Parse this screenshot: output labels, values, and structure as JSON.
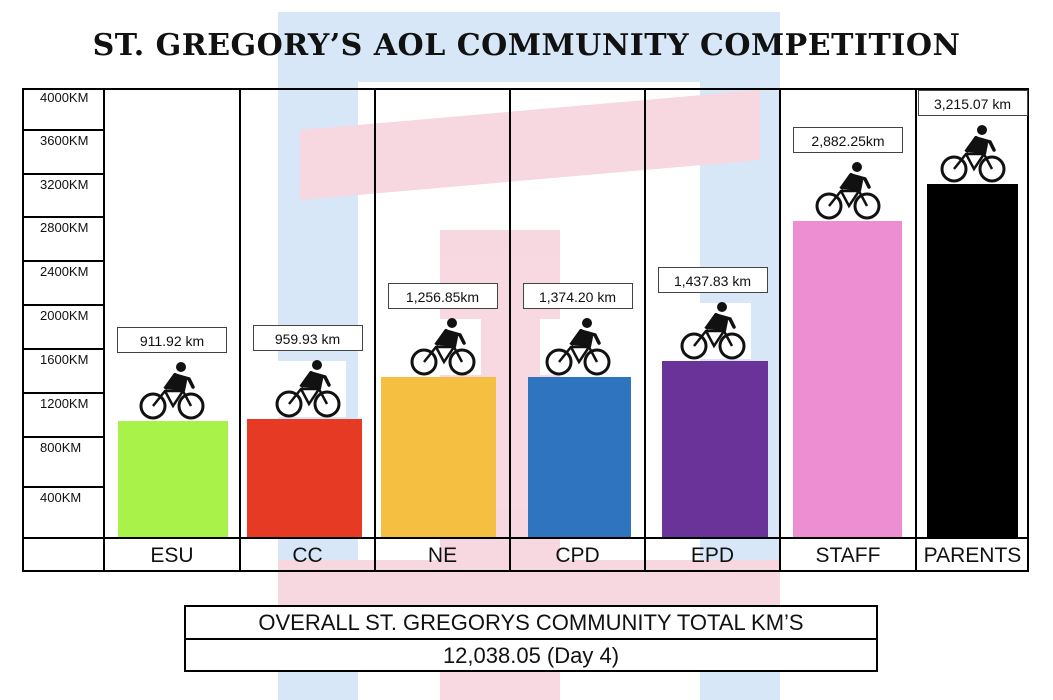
{
  "title": "ST. GREGORY’S AOL COMMUNITY COMPETITION",
  "chart_data": {
    "type": "bar",
    "title": "ST. GREGORY’S AOL COMMUNITY COMPETITION",
    "categories": [
      "ESU",
      "CC",
      "NE",
      "CPD",
      "EPD",
      "STAFF",
      "PARENTS"
    ],
    "values": [
      911.92,
      959.93,
      1256.85,
      1374.2,
      1437.83,
      2882.25,
      3215.07
    ],
    "value_labels": [
      "911.92 km",
      "959.93 km",
      "1,256.85km",
      "1,374.20 km",
      "1,437.83 km",
      "2,882.25km",
      "3,215.07 km"
    ],
    "colors": [
      "#a8f24a",
      "#e63a25",
      "#f5bf42",
      "#2f74bf",
      "#693399",
      "#ee8ed2",
      "#000000"
    ],
    "yticks": [
      "400KM",
      "800KM",
      "1200KM",
      "1600KM",
      "2000KM",
      "2400KM",
      "2800KM",
      "3200KM",
      "3600KM",
      "4000KM"
    ],
    "ylim": [
      0,
      4000
    ],
    "grid": false,
    "legend": "none",
    "icon": "cyclist-icon"
  },
  "summary": {
    "label": "OVERALL ST. GREGORYS COMMUNITY TOTAL KM’S",
    "value": "12,038.05 (Day 4)"
  }
}
